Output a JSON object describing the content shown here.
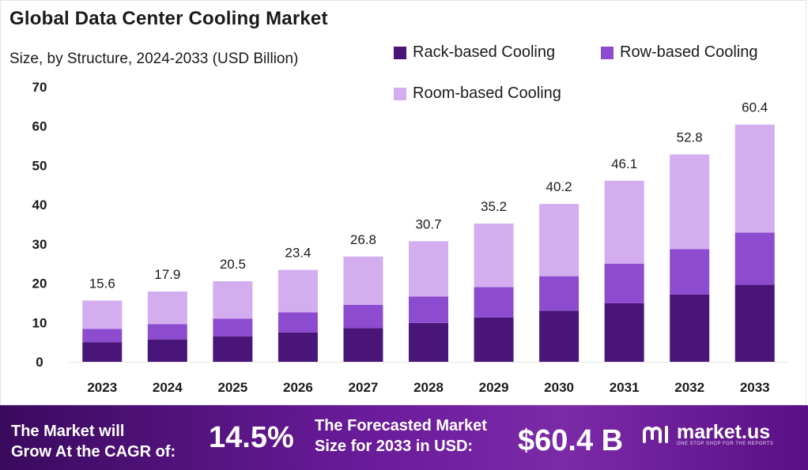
{
  "chart_data": {
    "type": "bar",
    "stacked": true,
    "title": "Global Data Center Cooling Market",
    "subtitle": "Size, by Structure, 2024-2033 (USD Billion)",
    "categories": [
      "2023",
      "2024",
      "2025",
      "2026",
      "2027",
      "2028",
      "2029",
      "2030",
      "2031",
      "2032",
      "2033"
    ],
    "series": [
      {
        "name": "Rack-based Cooling",
        "color": "#4a1578",
        "values": [
          5.0,
          5.7,
          6.5,
          7.5,
          8.6,
          9.9,
          11.3,
          13.0,
          14.9,
          17.1,
          19.6
        ]
      },
      {
        "name": "Row-based Cooling",
        "color": "#8d4bd0",
        "values": [
          3.4,
          3.9,
          4.5,
          5.1,
          5.9,
          6.7,
          7.7,
          8.8,
          10.1,
          11.6,
          13.3
        ]
      },
      {
        "name": "Room-based Cooling",
        "color": "#d3adf0",
        "values": [
          7.2,
          8.3,
          9.5,
          10.8,
          12.3,
          14.1,
          16.2,
          18.4,
          21.1,
          24.1,
          27.5
        ]
      }
    ],
    "totals": [
      "15.6",
      "17.9",
      "20.5",
      "23.4",
      "26.8",
      "30.7",
      "35.2",
      "40.2",
      "46.1",
      "52.8",
      "60.4"
    ],
    "ylim": [
      0,
      70
    ],
    "yticks": [
      "0",
      "10",
      "20",
      "30",
      "40",
      "50",
      "60",
      "70"
    ],
    "legend_position": "top-right",
    "grid": false
  },
  "footer": {
    "cagr_label_line1": "The Market will",
    "cagr_label_line2": "Grow At the CAGR of:",
    "cagr_value": "14.5%",
    "forecast_label_line1": "The Forecasted Market",
    "forecast_label_line2": "Size for 2033 in USD:",
    "forecast_value": "$60.4 B"
  },
  "brand": {
    "name": "market.us",
    "tagline": "ONE STOP SHOP FOR THE REPORTS",
    "logo_icon": "market-us-logo-icon"
  }
}
